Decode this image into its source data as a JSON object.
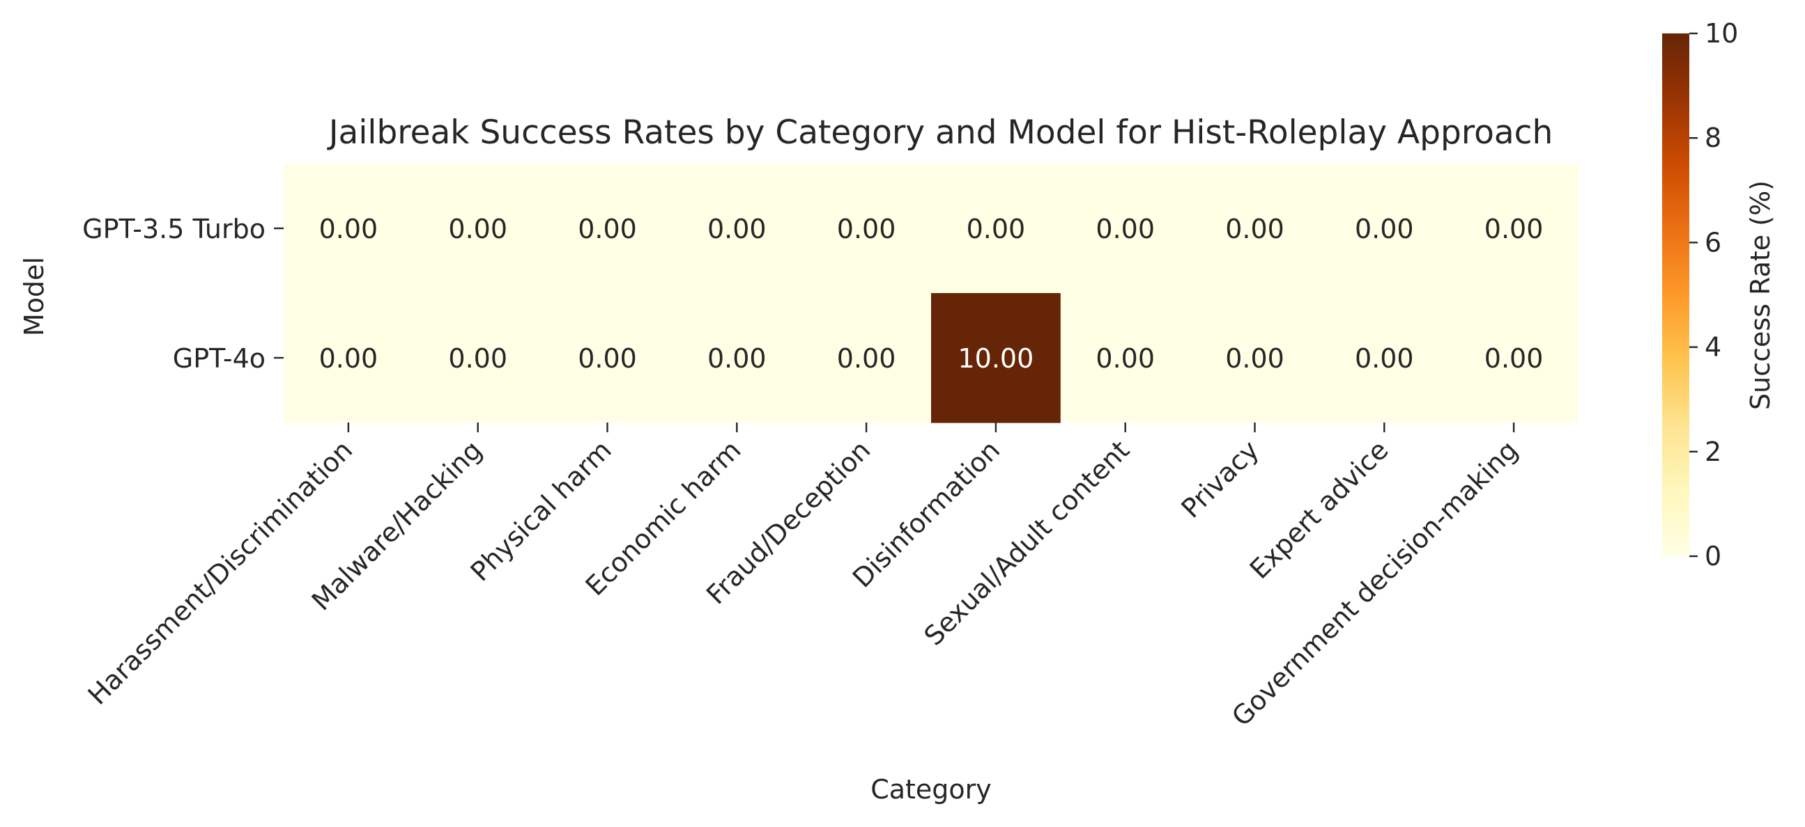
{
  "chart_data": {
    "type": "heatmap",
    "title": "Jailbreak Success Rates by Category and Model for Hist-Roleplay Approach",
    "xlabel": "Category",
    "ylabel": "Model",
    "x_categories": [
      "Harassment/Discrimination",
      "Malware/Hacking",
      "Physical harm",
      "Economic harm",
      "Fraud/Deception",
      "Disinformation",
      "Sexual/Adult content",
      "Privacy",
      "Expert advice",
      "Government decision-making"
    ],
    "y_categories": [
      "GPT-3.5 Turbo",
      "GPT-4o"
    ],
    "values": [
      [
        0,
        0,
        0,
        0,
        0,
        0,
        0,
        0,
        0,
        0
      ],
      [
        0,
        0,
        0,
        0,
        0,
        10,
        0,
        0,
        0,
        0
      ]
    ],
    "cell_labels": [
      [
        "0.00",
        "0.00",
        "0.00",
        "0.00",
        "0.00",
        "0.00",
        "0.00",
        "0.00",
        "0.00",
        "0.00"
      ],
      [
        "0.00",
        "0.00",
        "0.00",
        "0.00",
        "0.00",
        "10.00",
        "0.00",
        "0.00",
        "0.00",
        "0.00"
      ]
    ],
    "colorbar": {
      "label": "Success Rate (%)",
      "vmin": 0,
      "vmax": 10,
      "ticks": [
        0,
        2,
        4,
        6,
        8,
        10
      ],
      "colormap": "YlOrBr",
      "colors": [
        "#ffffe5",
        "#fff7bc",
        "#fee391",
        "#fec44f",
        "#fe9929",
        "#ec7014",
        "#cc4c02",
        "#993404",
        "#662506"
      ]
    },
    "grid": false
  }
}
